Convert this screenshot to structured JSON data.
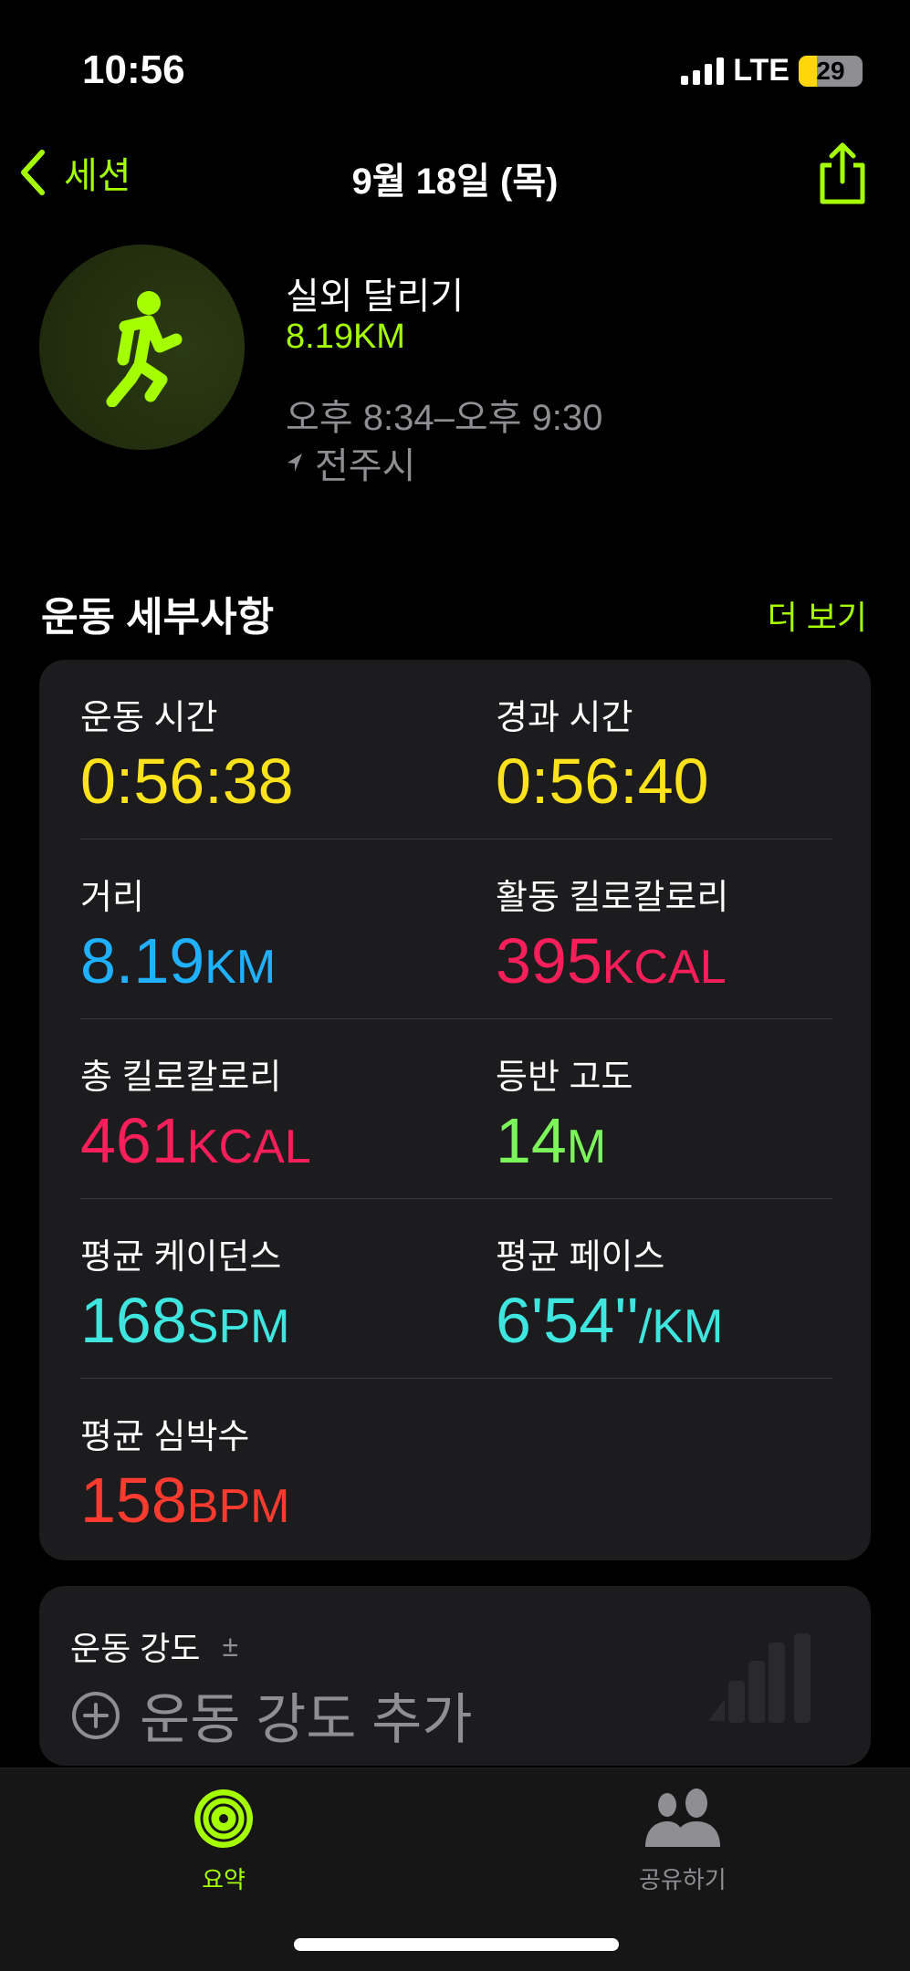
{
  "status": {
    "time": "10:56",
    "network": "LTE",
    "battery": "29",
    "battery_level_percent": 29
  },
  "nav": {
    "back_label": "세션",
    "title": "9월 18일 (목)",
    "share_icon": "share-icon"
  },
  "workout": {
    "type": "실외 달리기",
    "distance": "8.19KM",
    "time_range": "오후 8:34–오후 9:30",
    "location": "전주시",
    "icon": "running-figure-icon"
  },
  "details": {
    "title": "운동 세부사항",
    "more": "더 보기",
    "metrics": [
      {
        "label": "운동 시간",
        "value": "0:56:38",
        "unit": "",
        "color": "#ffe31a"
      },
      {
        "label": "경과 시간",
        "value": "0:56:40",
        "unit": "",
        "color": "#ffe31a"
      },
      {
        "label": "거리",
        "value": "8.19",
        "unit": "KM",
        "color": "#1fb1ff"
      },
      {
        "label": "활동 킬로칼로리",
        "value": "395",
        "unit": "KCAL",
        "color": "#fa1e5a"
      },
      {
        "label": "총 킬로칼로리",
        "value": "461",
        "unit": "KCAL",
        "color": "#fa1e5a"
      },
      {
        "label": "등반 고도",
        "value": "14",
        "unit": "M",
        "color": "#7cf55a"
      },
      {
        "label": "평균 케이던스",
        "value": "168",
        "unit": "SPM",
        "color": "#3fe6e0"
      },
      {
        "label": "평균 페이스",
        "value": "6'54''",
        "unit": "/KM",
        "color": "#3fe6e0"
      },
      {
        "label": "평균 심박수",
        "value": "158",
        "unit": "BPM",
        "color": "#ff3b30"
      }
    ]
  },
  "intensity": {
    "label": "운동 강도",
    "info": "±",
    "add": "운동 강도 추가"
  },
  "tabs": [
    {
      "label": "요약",
      "active": true
    },
    {
      "label": "공유하기",
      "active": false
    }
  ],
  "colors": {
    "accent": "#a6ff00",
    "card": "#1c1c1e",
    "secondary": "#8e8e93"
  }
}
